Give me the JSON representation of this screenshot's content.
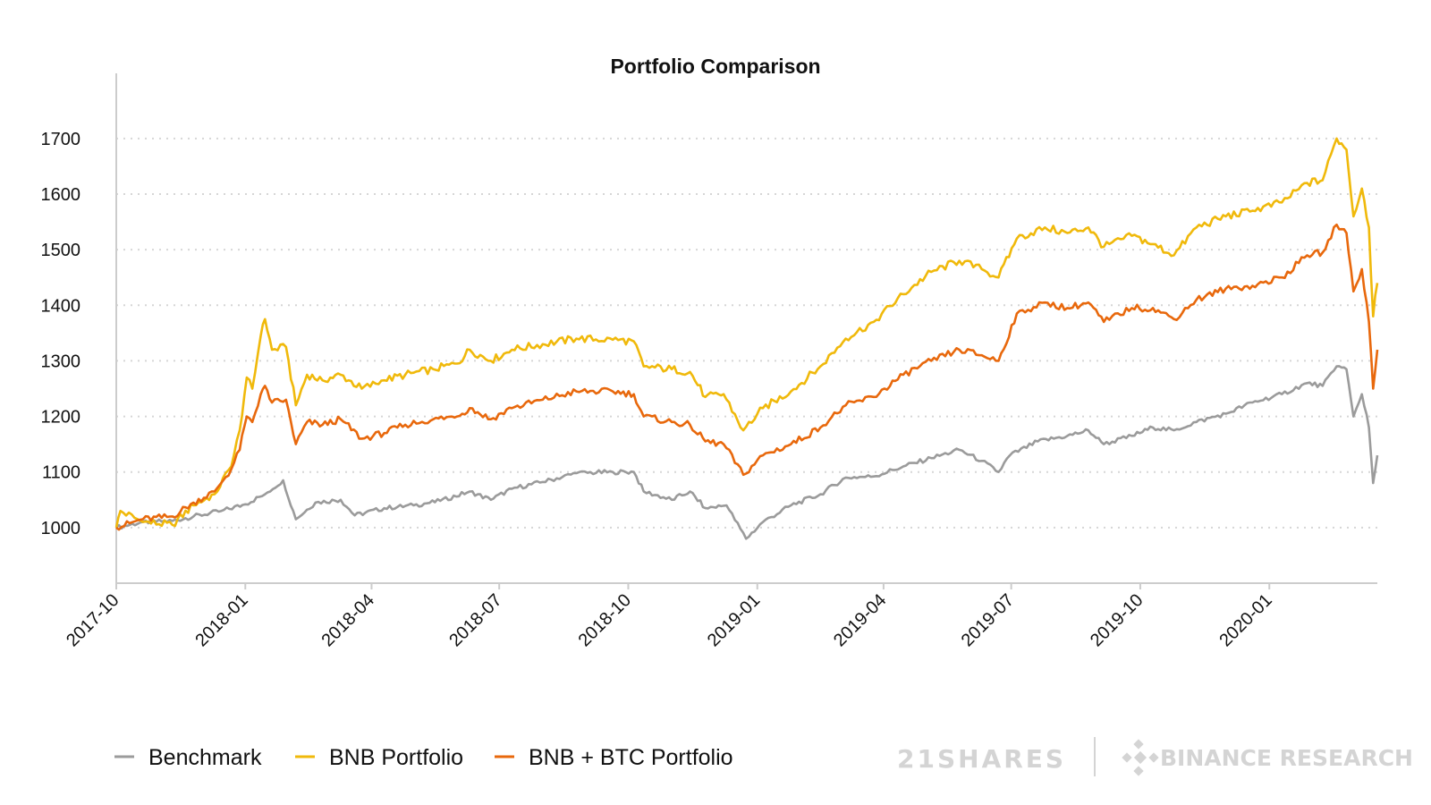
{
  "colors": {
    "benchmark": "#9b9b9b",
    "bnb": "#f0b90b",
    "bnb_btc": "#e8680c",
    "axis": "#cccccc",
    "grid": "#d6d6d6",
    "watermark": "#d4d4d4"
  },
  "branding": {
    "left": "21SHARES",
    "right": "BINANCE RESEARCH",
    "right_icon": "binance-logo-icon"
  },
  "chart_data": {
    "type": "line",
    "title": "Portfolio Comparison",
    "xlabel": "",
    "ylabel": "",
    "x_ticks": [
      "2017-10",
      "2018-01",
      "2018-04",
      "2018-07",
      "2018-10",
      "2019-01",
      "2019-04",
      "2019-07",
      "2019-10",
      "2020-01"
    ],
    "y_ticks": [
      1000,
      1100,
      1200,
      1300,
      1400,
      1500,
      1600,
      1700
    ],
    "ylim": [
      900,
      1740
    ],
    "xlim": [
      "2017-10-01",
      "2020-03-18"
    ],
    "grid": "horizontal-dotted",
    "legend_position": "bottom-left",
    "series": [
      {
        "name": "Benchmark",
        "points": [
          [
            "2017-10-01",
            1000
          ],
          [
            "2017-10-20",
            1010
          ],
          [
            "2017-11-10",
            1012
          ],
          [
            "2017-11-25",
            1020
          ],
          [
            "2017-12-15",
            1030
          ],
          [
            "2018-01-01",
            1042
          ],
          [
            "2018-01-15",
            1060
          ],
          [
            "2018-01-28",
            1085
          ],
          [
            "2018-02-06",
            1015
          ],
          [
            "2018-02-20",
            1045
          ],
          [
            "2018-03-10",
            1050
          ],
          [
            "2018-03-20",
            1022
          ],
          [
            "2018-04-10",
            1035
          ],
          [
            "2018-05-01",
            1040
          ],
          [
            "2018-05-20",
            1048
          ],
          [
            "2018-06-10",
            1065
          ],
          [
            "2018-06-25",
            1050
          ],
          [
            "2018-07-10",
            1070
          ],
          [
            "2018-08-01",
            1082
          ],
          [
            "2018-08-25",
            1098
          ],
          [
            "2018-09-20",
            1100
          ],
          [
            "2018-10-05",
            1100
          ],
          [
            "2018-10-12",
            1065
          ],
          [
            "2018-11-01",
            1050
          ],
          [
            "2018-11-14",
            1065
          ],
          [
            "2018-11-25",
            1035
          ],
          [
            "2018-12-10",
            1040
          ],
          [
            "2018-12-24",
            980
          ],
          [
            "2019-01-05",
            1010
          ],
          [
            "2019-01-25",
            1040
          ],
          [
            "2019-02-15",
            1060
          ],
          [
            "2019-03-05",
            1090
          ],
          [
            "2019-03-25",
            1092
          ],
          [
            "2019-04-15",
            1110
          ],
          [
            "2019-05-05",
            1125
          ],
          [
            "2019-05-25",
            1140
          ],
          [
            "2019-06-10",
            1120
          ],
          [
            "2019-06-22",
            1100
          ],
          [
            "2019-06-30",
            1130
          ],
          [
            "2019-07-20",
            1155
          ],
          [
            "2019-08-10",
            1165
          ],
          [
            "2019-08-25",
            1175
          ],
          [
            "2019-09-05",
            1150
          ],
          [
            "2019-09-25",
            1165
          ],
          [
            "2019-10-10",
            1180
          ],
          [
            "2019-10-25",
            1175
          ],
          [
            "2019-11-10",
            1190
          ],
          [
            "2019-12-01",
            1205
          ],
          [
            "2019-12-20",
            1225
          ],
          [
            "2020-01-10",
            1240
          ],
          [
            "2020-01-28",
            1260
          ],
          [
            "2020-02-08",
            1255
          ],
          [
            "2020-02-18",
            1290
          ],
          [
            "2020-02-25",
            1285
          ],
          [
            "2020-03-01",
            1200
          ],
          [
            "2020-03-07",
            1240
          ],
          [
            "2020-03-12",
            1180
          ],
          [
            "2020-03-15",
            1080
          ],
          [
            "2020-03-18",
            1130
          ]
        ]
      },
      {
        "name": "BNB Portfolio",
        "points": [
          [
            "2017-10-01",
            1000
          ],
          [
            "2017-10-04",
            1030
          ],
          [
            "2017-10-20",
            1010
          ],
          [
            "2017-11-10",
            1005
          ],
          [
            "2017-11-25",
            1040
          ],
          [
            "2017-12-10",
            1060
          ],
          [
            "2017-12-22",
            1110
          ],
          [
            "2017-12-28",
            1175
          ],
          [
            "2018-01-02",
            1270
          ],
          [
            "2018-01-06",
            1250
          ],
          [
            "2018-01-12",
            1345
          ],
          [
            "2018-01-15",
            1375
          ],
          [
            "2018-01-20",
            1320
          ],
          [
            "2018-01-30",
            1325
          ],
          [
            "2018-02-06",
            1220
          ],
          [
            "2018-02-14",
            1275
          ],
          [
            "2018-02-25",
            1265
          ],
          [
            "2018-03-10",
            1275
          ],
          [
            "2018-03-25",
            1250
          ],
          [
            "2018-04-10",
            1265
          ],
          [
            "2018-04-25",
            1275
          ],
          [
            "2018-05-15",
            1285
          ],
          [
            "2018-06-01",
            1295
          ],
          [
            "2018-06-10",
            1320
          ],
          [
            "2018-06-25",
            1300
          ],
          [
            "2018-07-10",
            1320
          ],
          [
            "2018-08-01",
            1330
          ],
          [
            "2018-08-25",
            1340
          ],
          [
            "2018-09-20",
            1338
          ],
          [
            "2018-10-05",
            1335
          ],
          [
            "2018-10-12",
            1290
          ],
          [
            "2018-11-01",
            1285
          ],
          [
            "2018-11-14",
            1280
          ],
          [
            "2018-11-25",
            1235
          ],
          [
            "2018-12-08",
            1240
          ],
          [
            "2018-12-22",
            1175
          ],
          [
            "2019-01-05",
            1215
          ],
          [
            "2019-01-25",
            1245
          ],
          [
            "2019-02-15",
            1290
          ],
          [
            "2019-03-05",
            1340
          ],
          [
            "2019-03-25",
            1370
          ],
          [
            "2019-04-15",
            1420
          ],
          [
            "2019-05-05",
            1460
          ],
          [
            "2019-05-25",
            1480
          ],
          [
            "2019-06-10",
            1465
          ],
          [
            "2019-06-22",
            1450
          ],
          [
            "2019-07-05",
            1520
          ],
          [
            "2019-07-25",
            1540
          ],
          [
            "2019-08-10",
            1530
          ],
          [
            "2019-08-25",
            1540
          ],
          [
            "2019-09-05",
            1505
          ],
          [
            "2019-09-25",
            1525
          ],
          [
            "2019-10-10",
            1510
          ],
          [
            "2019-10-25",
            1490
          ],
          [
            "2019-11-10",
            1540
          ],
          [
            "2019-12-01",
            1560
          ],
          [
            "2019-12-20",
            1570
          ],
          [
            "2020-01-10",
            1585
          ],
          [
            "2020-01-28",
            1620
          ],
          [
            "2020-02-08",
            1625
          ],
          [
            "2020-02-18",
            1700
          ],
          [
            "2020-02-25",
            1680
          ],
          [
            "2020-03-01",
            1560
          ],
          [
            "2020-03-07",
            1610
          ],
          [
            "2020-03-12",
            1540
          ],
          [
            "2020-03-15",
            1380
          ],
          [
            "2020-03-18",
            1440
          ]
        ]
      },
      {
        "name": "BNB + BTC Portfolio",
        "points": [
          [
            "2017-10-01",
            1000
          ],
          [
            "2017-10-20",
            1015
          ],
          [
            "2017-11-10",
            1020
          ],
          [
            "2017-11-25",
            1045
          ],
          [
            "2017-12-10",
            1065
          ],
          [
            "2017-12-22",
            1105
          ],
          [
            "2017-12-28",
            1140
          ],
          [
            "2018-01-02",
            1200
          ],
          [
            "2018-01-06",
            1190
          ],
          [
            "2018-01-12",
            1240
          ],
          [
            "2018-01-15",
            1255
          ],
          [
            "2018-01-20",
            1225
          ],
          [
            "2018-01-30",
            1230
          ],
          [
            "2018-02-06",
            1150
          ],
          [
            "2018-02-14",
            1190
          ],
          [
            "2018-02-25",
            1185
          ],
          [
            "2018-03-10",
            1195
          ],
          [
            "2018-03-25",
            1160
          ],
          [
            "2018-04-10",
            1170
          ],
          [
            "2018-04-25",
            1185
          ],
          [
            "2018-05-15",
            1195
          ],
          [
            "2018-06-01",
            1200
          ],
          [
            "2018-06-10",
            1215
          ],
          [
            "2018-06-25",
            1195
          ],
          [
            "2018-07-10",
            1215
          ],
          [
            "2018-08-01",
            1230
          ],
          [
            "2018-08-25",
            1245
          ],
          [
            "2018-09-20",
            1245
          ],
          [
            "2018-10-05",
            1240
          ],
          [
            "2018-10-12",
            1200
          ],
          [
            "2018-11-01",
            1190
          ],
          [
            "2018-11-14",
            1185
          ],
          [
            "2018-11-25",
            1155
          ],
          [
            "2018-12-08",
            1150
          ],
          [
            "2018-12-22",
            1095
          ],
          [
            "2019-01-05",
            1130
          ],
          [
            "2019-01-25",
            1150
          ],
          [
            "2019-02-15",
            1180
          ],
          [
            "2019-03-05",
            1220
          ],
          [
            "2019-03-25",
            1235
          ],
          [
            "2019-04-15",
            1275
          ],
          [
            "2019-05-05",
            1300
          ],
          [
            "2019-05-25",
            1320
          ],
          [
            "2019-06-10",
            1310
          ],
          [
            "2019-06-22",
            1300
          ],
          [
            "2019-07-05",
            1385
          ],
          [
            "2019-07-25",
            1405
          ],
          [
            "2019-08-10",
            1395
          ],
          [
            "2019-08-25",
            1405
          ],
          [
            "2019-09-05",
            1370
          ],
          [
            "2019-09-25",
            1395
          ],
          [
            "2019-10-10",
            1395
          ],
          [
            "2019-10-25",
            1375
          ],
          [
            "2019-11-10",
            1410
          ],
          [
            "2019-12-01",
            1430
          ],
          [
            "2019-12-20",
            1435
          ],
          [
            "2020-01-10",
            1450
          ],
          [
            "2020-01-28",
            1490
          ],
          [
            "2020-02-08",
            1495
          ],
          [
            "2020-02-18",
            1545
          ],
          [
            "2020-02-25",
            1530
          ],
          [
            "2020-03-01",
            1425
          ],
          [
            "2020-03-07",
            1465
          ],
          [
            "2020-03-12",
            1370
          ],
          [
            "2020-03-15",
            1250
          ],
          [
            "2020-03-18",
            1320
          ]
        ]
      }
    ]
  }
}
